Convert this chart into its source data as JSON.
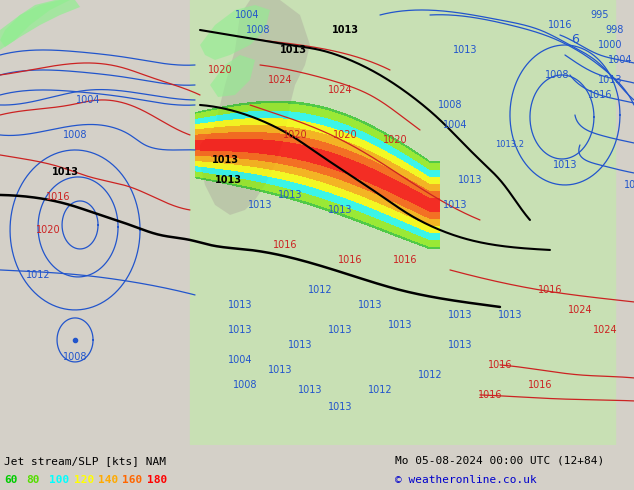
{
  "title_left": "Jet stream/SLP [kts] NAM",
  "title_right": "Mo 05-08-2024 00:00 UTC (12+84)",
  "copyright": "© weatheronline.co.uk",
  "legend_values": [
    "60",
    "80",
    "100",
    "120",
    "140",
    "160",
    "180"
  ],
  "legend_colors": [
    "#00cc00",
    "#55dd00",
    "#00ffff",
    "#ffff00",
    "#ffaa00",
    "#ff6600",
    "#ff0000"
  ],
  "bg_color": "#d4d0c8",
  "figsize": [
    6.34,
    4.9
  ],
  "dpi": 100,
  "map_ocean_color": "#d4d0c8",
  "map_land_color": "#c8e0b4",
  "jet_green1": "#00bb00",
  "jet_green2": "#44ee00",
  "jet_cyan": "#00ffff",
  "jet_yellow": "#ffff00",
  "jet_orange": "#ffaa00",
  "jet_red_orange": "#ff5500",
  "jet_red": "#ff0000",
  "contour_blue": "#2255cc",
  "contour_red": "#cc2222",
  "contour_black": "#000000",
  "bottom_bg": "#d4d0c8",
  "bottom_text_color": "#000000",
  "copyright_color": "#0000cc",
  "legend_label_fontsize": 8,
  "title_fontsize": 8
}
